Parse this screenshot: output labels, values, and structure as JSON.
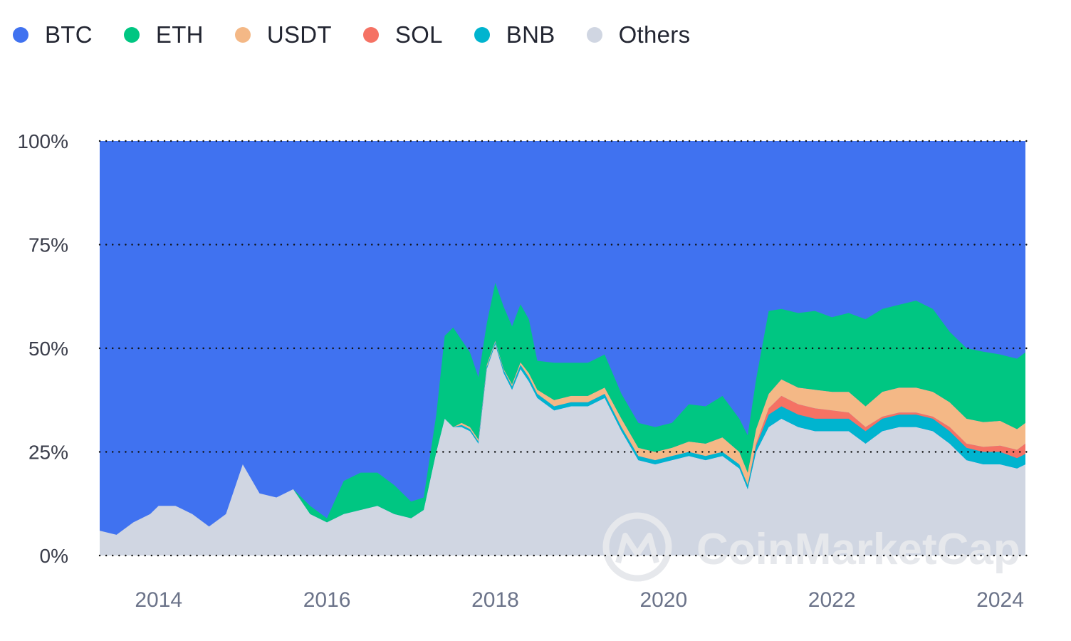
{
  "chart_data": {
    "type": "area",
    "stacked": true,
    "normalized": true,
    "legend_position": "top-left",
    "grid": "horizontal-dotted",
    "ylim": [
      0,
      100
    ],
    "xlim": [
      2013.3,
      2024.3
    ],
    "y_ticks": [
      "100%",
      "75%",
      "50%",
      "25%",
      "0%"
    ],
    "y_tick_values": [
      100,
      75,
      50,
      25,
      0
    ],
    "x_ticks": [
      "2014",
      "2016",
      "2018",
      "2020",
      "2022",
      "2024"
    ],
    "x_tick_values": [
      2014,
      2016,
      2018,
      2020,
      2022,
      2024
    ],
    "watermark": "CoinMarketCap",
    "colors": {
      "BTC": "#4072f0",
      "ETH": "#00c682",
      "USDT": "#f4b886",
      "SOL": "#f57264",
      "BNB": "#00b4cf",
      "Others": "#d0d6e2"
    },
    "x": [
      2013.3,
      2013.5,
      2013.7,
      2013.9,
      2014.0,
      2014.2,
      2014.4,
      2014.6,
      2014.8,
      2015.0,
      2015.2,
      2015.4,
      2015.6,
      2015.8,
      2016.0,
      2016.2,
      2016.4,
      2016.6,
      2016.8,
      2017.0,
      2017.15,
      2017.3,
      2017.4,
      2017.5,
      2017.6,
      2017.7,
      2017.8,
      2017.9,
      2018.0,
      2018.1,
      2018.2,
      2018.3,
      2018.4,
      2018.5,
      2018.7,
      2018.9,
      2019.1,
      2019.3,
      2019.5,
      2019.7,
      2019.9,
      2020.1,
      2020.3,
      2020.5,
      2020.7,
      2020.9,
      2021.0,
      2021.1,
      2021.25,
      2021.4,
      2021.6,
      2021.8,
      2022.0,
      2022.2,
      2022.4,
      2022.6,
      2022.8,
      2023.0,
      2023.2,
      2023.4,
      2023.6,
      2023.8,
      2024.0,
      2024.2,
      2024.3
    ],
    "series": [
      {
        "name": "Others",
        "values": [
          6,
          5,
          8,
          10,
          12,
          12,
          10,
          7,
          10,
          22,
          15,
          14,
          16,
          10,
          8,
          10,
          11,
          12,
          10,
          9,
          11,
          25,
          33,
          31,
          31,
          30,
          27,
          45,
          51,
          44,
          40,
          45,
          42,
          38,
          35,
          36,
          36,
          38,
          30,
          23,
          22,
          23,
          24,
          23,
          24,
          21,
          16,
          25,
          31,
          33,
          31,
          30,
          30,
          30,
          27,
          30,
          31,
          31,
          30,
          27,
          23,
          22,
          22,
          21,
          22
        ]
      },
      {
        "name": "BNB",
        "values": [
          0,
          0,
          0,
          0,
          0,
          0,
          0,
          0,
          0,
          0,
          0,
          0,
          0,
          0,
          0,
          0,
          0,
          0,
          0,
          0,
          0,
          0,
          0,
          0,
          0.5,
          0.5,
          0.5,
          0.5,
          0.5,
          0.7,
          0.8,
          1,
          1,
          1,
          1,
          1,
          1,
          1,
          1,
          1,
          1,
          1,
          1,
          1,
          1,
          1,
          1,
          1.5,
          3,
          3,
          3,
          3,
          3,
          3,
          3,
          3,
          3,
          3,
          3,
          3,
          3,
          3,
          3,
          2.5,
          2.5
        ]
      },
      {
        "name": "SOL",
        "values": [
          0,
          0,
          0,
          0,
          0,
          0,
          0,
          0,
          0,
          0,
          0,
          0,
          0,
          0,
          0,
          0,
          0,
          0,
          0,
          0,
          0,
          0,
          0,
          0,
          0,
          0,
          0,
          0,
          0,
          0,
          0,
          0,
          0,
          0,
          0,
          0,
          0,
          0,
          0,
          0,
          0,
          0,
          0,
          0,
          0,
          0,
          0,
          0.5,
          1.5,
          2.5,
          2.5,
          2.5,
          2,
          1.5,
          1,
          0.5,
          0.5,
          0.5,
          0.5,
          1,
          1,
          1.2,
          1.5,
          2,
          2.5
        ]
      },
      {
        "name": "USDT",
        "values": [
          0,
          0,
          0,
          0,
          0,
          0,
          0,
          0,
          0,
          0,
          0,
          0,
          0,
          0,
          0,
          0,
          0,
          0,
          0,
          0,
          0,
          0,
          0,
          0,
          0.5,
          0.5,
          0.5,
          0.5,
          0.3,
          0.3,
          0.5,
          0.6,
          1,
          1,
          1.5,
          1.5,
          1.5,
          1.5,
          2,
          2,
          2,
          2,
          2.5,
          3,
          3.5,
          3,
          3,
          3.5,
          3.5,
          4,
          4,
          4.5,
          4.5,
          5,
          5,
          6,
          6,
          6,
          6,
          6,
          6,
          6,
          6,
          5,
          5
        ]
      },
      {
        "name": "ETH",
        "values": [
          0,
          0,
          0,
          0,
          0,
          0,
          0,
          0,
          0,
          0,
          0,
          0,
          0,
          2,
          1,
          8,
          9,
          8,
          7,
          4,
          3,
          9,
          20,
          24,
          20,
          18,
          15,
          10,
          14,
          15,
          14,
          14,
          13,
          7,
          9,
          8,
          8,
          8,
          6,
          6,
          6,
          6,
          9,
          9,
          10,
          8,
          9,
          12,
          20,
          17,
          18,
          19,
          18,
          19,
          21,
          20,
          20,
          21,
          20,
          17,
          17,
          17,
          16,
          17,
          17
        ]
      }
    ],
    "btc_note": "BTC fills the remainder up to 100% at each x"
  },
  "legend": [
    {
      "name": "BTC",
      "color": "#4072f0"
    },
    {
      "name": "ETH",
      "color": "#00c682"
    },
    {
      "name": "USDT",
      "color": "#f4b886"
    },
    {
      "name": "SOL",
      "color": "#f57264"
    },
    {
      "name": "BNB",
      "color": "#00b4cf"
    },
    {
      "name": "Others",
      "color": "#d0d6e2"
    }
  ]
}
